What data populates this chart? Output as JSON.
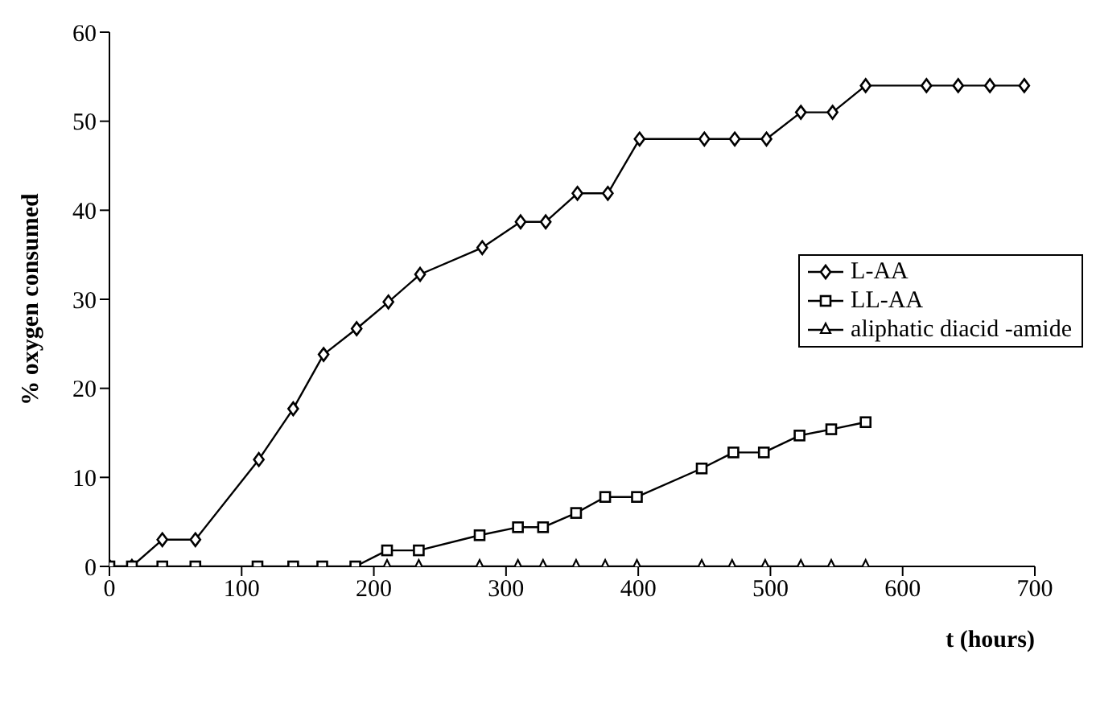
{
  "chart_data": {
    "type": "line",
    "xlabel": "t (hours)",
    "ylabel": "% oxygen consumed",
    "xlim": [
      0,
      700
    ],
    "xticks": [
      0,
      100,
      200,
      300,
      400,
      500,
      600,
      700
    ],
    "ylim": [
      0,
      60
    ],
    "yticks": [
      0,
      10,
      20,
      30,
      40,
      50,
      60
    ],
    "grid": false,
    "legend": "right",
    "line_style": "solid",
    "series": [
      {
        "name": "L-AA",
        "color": "#000000",
        "marker": "diamond",
        "x": [
          0,
          17,
          40,
          65,
          113,
          139,
          162,
          187,
          211,
          235,
          282,
          311,
          330,
          354,
          377,
          401,
          450,
          473,
          497,
          523,
          547,
          572,
          618,
          642,
          666,
          692
        ],
        "values": [
          0,
          0,
          3,
          3,
          12,
          17.7,
          23.8,
          26.7,
          29.7,
          32.8,
          35.8,
          38.7,
          38.7,
          41.9,
          41.9,
          48,
          48,
          48,
          48,
          51,
          51,
          54,
          54,
          54,
          54,
          54
        ]
      },
      {
        "name": "LL-AA",
        "color": "#000000",
        "marker": "square",
        "x": [
          0,
          17,
          40,
          65,
          112,
          139,
          161,
          186,
          210,
          234,
          280,
          309,
          328,
          353,
          375,
          399,
          448,
          472,
          495,
          522,
          546,
          572
        ],
        "values": [
          0,
          0,
          0,
          0,
          0,
          0,
          0,
          0,
          1.8,
          1.8,
          3.5,
          4.4,
          4.4,
          6,
          7.8,
          7.8,
          11,
          12.8,
          12.8,
          14.7,
          15.4,
          16.2
        ]
      },
      {
        "name": "aliphatic diacid -amide",
        "color": "#000000",
        "marker": "triangle",
        "x": [
          210,
          234,
          280,
          309,
          328,
          353,
          375,
          399,
          448,
          471,
          496,
          523,
          546,
          572
        ],
        "values": [
          0,
          0,
          0,
          0,
          0,
          0,
          0,
          0,
          0,
          0,
          0,
          0,
          0,
          0
        ]
      }
    ]
  }
}
